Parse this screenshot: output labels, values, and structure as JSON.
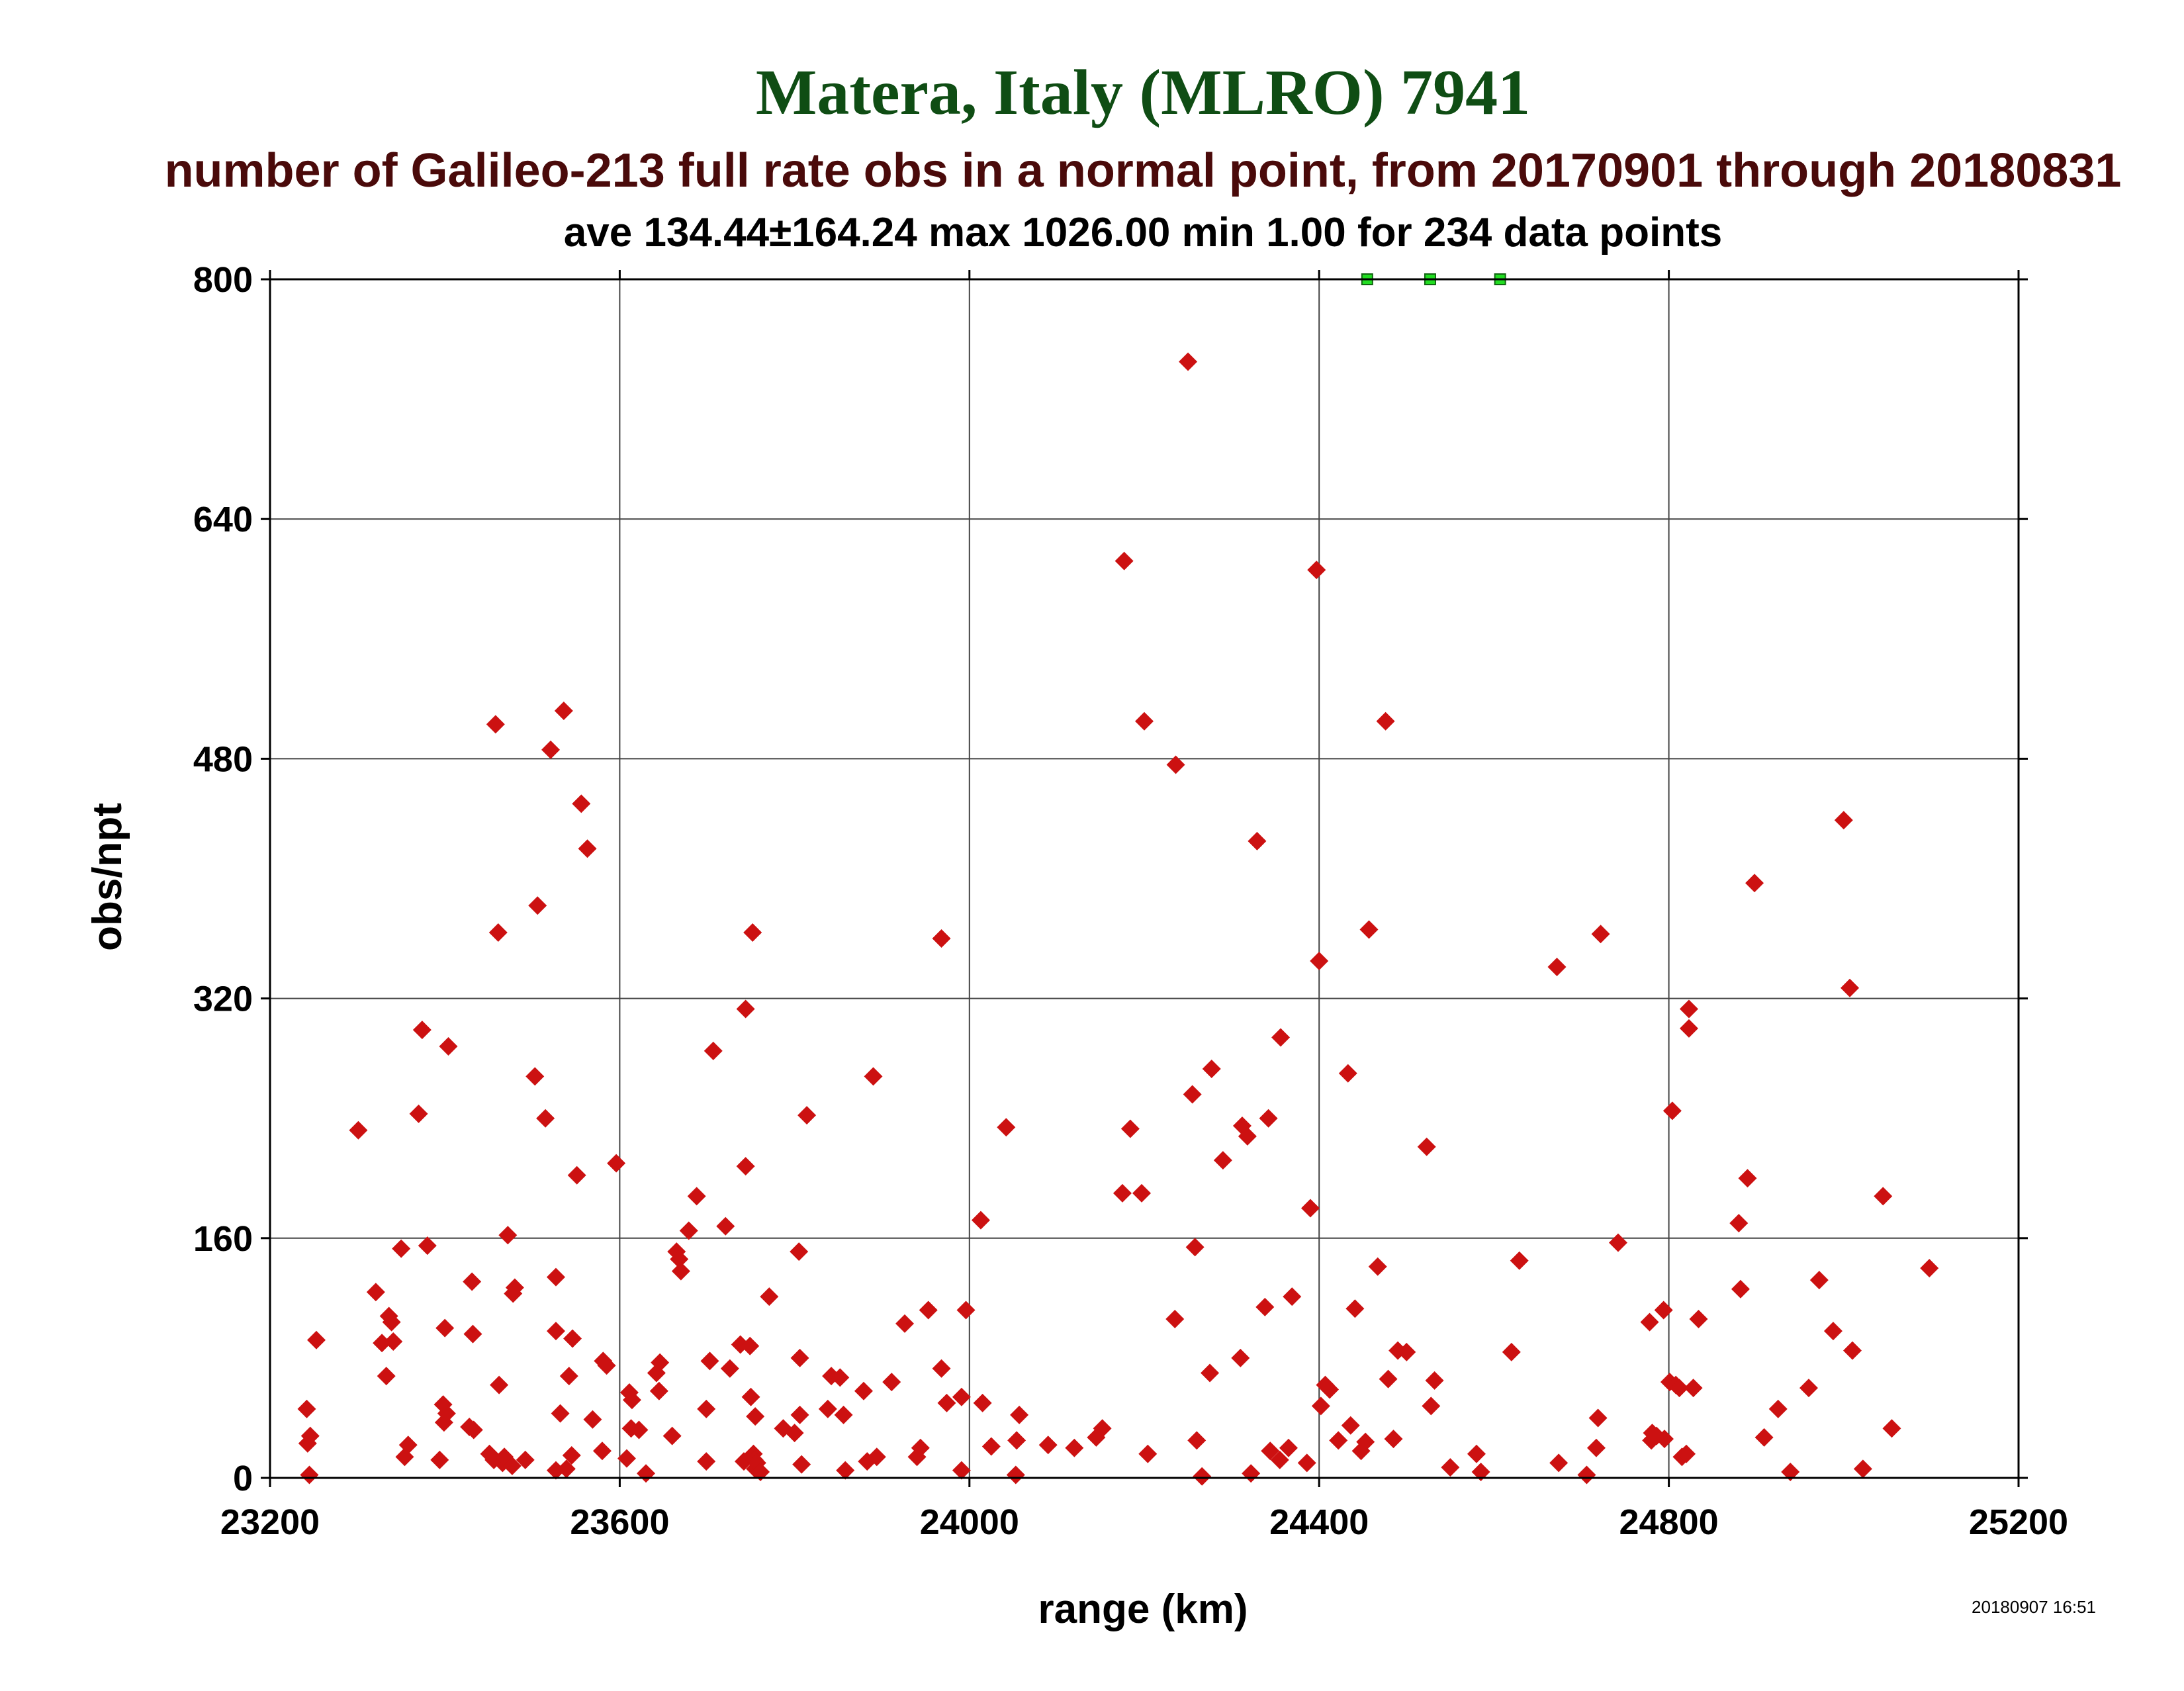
{
  "chart_data": {
    "type": "scatter",
    "title": "Matera, Italy (MLRO) 7941",
    "subtitle": "number of Galileo-213 full rate obs in a normal point, from 20170901 through 20180831",
    "stats": "ave 134.44±164.24 max 1026.00 min 1.00 for 234 data points",
    "xlabel": "range (km)",
    "ylabel": "obs/npt",
    "timestamp": "20180907 16:51",
    "xlim": [
      23200,
      25200
    ],
    "ylim": [
      0,
      800
    ],
    "xticks": [
      23200,
      23600,
      24000,
      24400,
      24800,
      25200
    ],
    "yticks": [
      0,
      160,
      320,
      480,
      640,
      800
    ],
    "grid": true,
    "colors": {
      "points": "#cc1111",
      "outliers": "#22dd22",
      "title": "#0f4d14",
      "subtitle": "#4a0a0a"
    },
    "outliers_clipped_at_top": {
      "x": [
        24455,
        24527,
        24607
      ],
      "y": 800
    },
    "points": [
      [
        23242,
        46
      ],
      [
        23243,
        23
      ],
      [
        23245,
        2
      ],
      [
        23246,
        28
      ],
      [
        23253,
        92
      ],
      [
        23301,
        232
      ],
      [
        23321,
        124
      ],
      [
        23328,
        90
      ],
      [
        23333,
        68
      ],
      [
        23336,
        108
      ],
      [
        23339,
        104
      ],
      [
        23341,
        91
      ],
      [
        23350,
        153
      ],
      [
        23354,
        14
      ],
      [
        23358,
        22
      ],
      [
        23370,
        243
      ],
      [
        23374,
        299
      ],
      [
        23380,
        155
      ],
      [
        23394,
        12
      ],
      [
        23398,
        49
      ],
      [
        23399,
        37
      ],
      [
        23400,
        100
      ],
      [
        23402,
        43
      ],
      [
        23404,
        288
      ],
      [
        23428,
        34
      ],
      [
        23431,
        131
      ],
      [
        23432,
        96
      ],
      [
        23433,
        32
      ],
      [
        23451,
        16
      ],
      [
        23456,
        12
      ],
      [
        23458,
        503
      ],
      [
        23461,
        364
      ],
      [
        23462,
        62
      ],
      [
        23466,
        10
      ],
      [
        23468,
        14
      ],
      [
        23472,
        162
      ],
      [
        23477,
        8
      ],
      [
        23478,
        123
      ],
      [
        23480,
        127
      ],
      [
        23492,
        12
      ],
      [
        23503,
        268
      ],
      [
        23506,
        382
      ],
      [
        23515,
        240
      ],
      [
        23521,
        486
      ],
      [
        23527,
        5
      ],
      [
        23527,
        134
      ],
      [
        23527,
        98
      ],
      [
        23532,
        43
      ],
      [
        23536,
        512
      ],
      [
        23539,
        6
      ],
      [
        23542,
        68
      ],
      [
        23545,
        15
      ],
      [
        23546,
        93
      ],
      [
        23551,
        202
      ],
      [
        23556,
        450
      ],
      [
        23563,
        420
      ],
      [
        23569,
        39
      ],
      [
        23580,
        18
      ],
      [
        23581,
        78
      ],
      [
        23585,
        75
      ],
      [
        23596,
        210
      ],
      [
        23608,
        13
      ],
      [
        23611,
        57
      ],
      [
        23613,
        33
      ],
      [
        23614,
        52
      ],
      [
        23622,
        32
      ],
      [
        23630,
        3
      ],
      [
        23642,
        70
      ],
      [
        23645,
        58
      ],
      [
        23646,
        77
      ],
      [
        23660,
        28
      ],
      [
        23665,
        151
      ],
      [
        23668,
        146
      ],
      [
        23670,
        138
      ],
      [
        23679,
        165
      ],
      [
        23688,
        188
      ],
      [
        23699,
        46
      ],
      [
        23699,
        11
      ],
      [
        23703,
        78
      ],
      [
        23707,
        285
      ],
      [
        23721,
        168
      ],
      [
        23726,
        73
      ],
      [
        23738,
        89
      ],
      [
        23742,
        11
      ],
      [
        23744,
        313
      ],
      [
        23744,
        208
      ],
      [
        23749,
        88
      ],
      [
        23750,
        54
      ],
      [
        23752,
        364
      ],
      [
        23753,
        16
      ],
      [
        23754,
        12
      ],
      [
        23755,
        41
      ],
      [
        23755,
        6
      ],
      [
        23757,
        10
      ],
      [
        23761,
        4
      ],
      [
        23771,
        121
      ],
      [
        23787,
        33
      ],
      [
        23800,
        30
      ],
      [
        23805,
        151
      ],
      [
        23806,
        42
      ],
      [
        23806,
        80
      ],
      [
        23808,
        9
      ],
      [
        23814,
        242
      ],
      [
        23838,
        46
      ],
      [
        23842,
        68
      ],
      [
        23852,
        67
      ],
      [
        23856,
        42
      ],
      [
        23858,
        5
      ],
      [
        23879,
        58
      ],
      [
        23883,
        11
      ],
      [
        23890,
        268
      ],
      [
        23894,
        14
      ],
      [
        23911,
        64
      ],
      [
        23926,
        103
      ],
      [
        23940,
        14
      ],
      [
        23944,
        20
      ],
      [
        23953,
        112
      ],
      [
        23968,
        360
      ],
      [
        23968,
        73
      ],
      [
        23974,
        50
      ],
      [
        23991,
        5
      ],
      [
        23991,
        54
      ],
      [
        23996,
        112
      ],
      [
        24013,
        172
      ],
      [
        24015,
        50
      ],
      [
        24025,
        21
      ],
      [
        24042,
        234
      ],
      [
        24053,
        2
      ],
      [
        24054,
        25
      ],
      [
        24057,
        42
      ],
      [
        24090,
        22
      ],
      [
        24120,
        20
      ],
      [
        24145,
        27
      ],
      [
        24152,
        33
      ],
      [
        24175,
        190
      ],
      [
        24177,
        612
      ],
      [
        24184,
        233
      ],
      [
        24197,
        190
      ],
      [
        24200,
        505
      ],
      [
        24204,
        16
      ],
      [
        24235,
        106
      ],
      [
        24236,
        476
      ],
      [
        24250,
        745
      ],
      [
        24255,
        256
      ],
      [
        24258,
        154
      ],
      [
        24260,
        25
      ],
      [
        24266,
        1
      ],
      [
        24275,
        70
      ],
      [
        24277,
        273
      ],
      [
        24290,
        212
      ],
      [
        24310,
        80
      ],
      [
        24312,
        235
      ],
      [
        24318,
        228
      ],
      [
        24322,
        3
      ],
      [
        24329,
        425
      ],
      [
        24338,
        114
      ],
      [
        24342,
        240
      ],
      [
        24344,
        18
      ],
      [
        24355,
        12
      ],
      [
        24356,
        294
      ],
      [
        24365,
        20
      ],
      [
        24369,
        121
      ],
      [
        24386,
        10
      ],
      [
        24390,
        180
      ],
      [
        24397,
        606
      ],
      [
        24400,
        345
      ],
      [
        24402,
        48
      ],
      [
        24407,
        62
      ],
      [
        24412,
        59
      ],
      [
        24422,
        25
      ],
      [
        24433,
        270
      ],
      [
        24436,
        35
      ],
      [
        24441,
        113
      ],
      [
        24448,
        18
      ],
      [
        24453,
        24
      ],
      [
        24457,
        366
      ],
      [
        24467,
        141
      ],
      [
        24476,
        505
      ],
      [
        24479,
        66
      ],
      [
        24485,
        26
      ],
      [
        24490,
        85
      ],
      [
        24500,
        84
      ],
      [
        24523,
        221
      ],
      [
        24528,
        48
      ],
      [
        24532,
        65
      ],
      [
        24550,
        7
      ],
      [
        24580,
        16
      ],
      [
        24585,
        4
      ],
      [
        24620,
        84
      ],
      [
        24629,
        145
      ],
      [
        24672,
        341
      ],
      [
        24674,
        10
      ],
      [
        24706,
        2
      ],
      [
        24717,
        20
      ],
      [
        24719,
        40
      ],
      [
        24722,
        363
      ],
      [
        24742,
        157
      ],
      [
        24778,
        104
      ],
      [
        24780,
        25
      ],
      [
        24781,
        30
      ],
      [
        24786,
        28
      ],
      [
        24794,
        112
      ],
      [
        24795,
        26
      ],
      [
        24801,
        64
      ],
      [
        24804,
        245
      ],
      [
        24808,
        62
      ],
      [
        24812,
        60
      ],
      [
        24815,
        14
      ],
      [
        24820,
        16
      ],
      [
        24823,
        300
      ],
      [
        24823,
        313
      ],
      [
        24828,
        60
      ],
      [
        24834,
        106
      ],
      [
        24880,
        170
      ],
      [
        24882,
        126
      ],
      [
        24890,
        200
      ],
      [
        24898,
        397
      ],
      [
        24909,
        27
      ],
      [
        24925,
        46
      ],
      [
        24939,
        4
      ],
      [
        24960,
        60
      ],
      [
        24972,
        132
      ],
      [
        24988,
        98
      ],
      [
        25000,
        439
      ],
      [
        25007,
        327
      ],
      [
        25010,
        85
      ],
      [
        25022,
        6
      ],
      [
        25045,
        188
      ],
      [
        25055,
        33
      ],
      [
        25098,
        140
      ]
    ]
  }
}
